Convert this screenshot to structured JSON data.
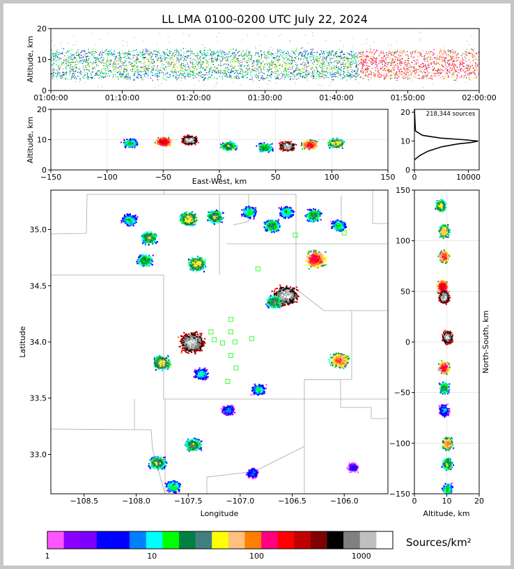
{
  "chart_data": [
    {
      "type": "scatter",
      "panel": "time-altitude",
      "title": "LL LMA 0100-0200 UTC July 22, 2024",
      "xlabel": "",
      "ylabel": "Altitude, km",
      "xticks": [
        "01:00:00",
        "01:10:00",
        "01:20:00",
        "01:30:00",
        "01:40:00",
        "01:50:00",
        "02:00:00"
      ],
      "xlim": [
        0,
        60
      ],
      "ylim": [
        0,
        20
      ],
      "yticks": [
        "0",
        "10",
        "20"
      ],
      "source_band_km": [
        4,
        13
      ]
    },
    {
      "type": "scatter",
      "panel": "east-west-altitude",
      "xlabel": "East-West, km",
      "ylabel": "Altitude, km",
      "xlim": [
        -150,
        150
      ],
      "ylim": [
        0,
        20
      ],
      "xticks": [
        "−150",
        "−100",
        "−50",
        "0",
        "50",
        "100",
        "150"
      ],
      "yticks": [
        "0",
        "10",
        "20"
      ],
      "clusters": [
        {
          "x": -80,
          "alt": 9,
          "peak": 20
        },
        {
          "x": -50,
          "alt": 9.5,
          "peak": 300
        },
        {
          "x": -27,
          "alt": 10,
          "peak": 1500
        },
        {
          "x": 8,
          "alt": 8,
          "peak": 40
        },
        {
          "x": 40,
          "alt": 7.5,
          "peak": 30
        },
        {
          "x": 60,
          "alt": 8,
          "peak": 1500
        },
        {
          "x": 80,
          "alt": 8.5,
          "peak": 200
        },
        {
          "x": 103,
          "alt": 9,
          "peak": 60
        }
      ]
    },
    {
      "type": "line",
      "panel": "altitude-histogram",
      "annotation": "218,344 sources",
      "xlim": [
        0,
        12000
      ],
      "ylim": [
        0,
        21
      ],
      "xticks": [
        "0",
        "10000"
      ],
      "yticks": [
        "0",
        "10",
        "20"
      ],
      "x": [
        0,
        1000,
        2500,
        5000,
        8000,
        10500,
        11800,
        9000,
        5000,
        1500,
        200,
        0
      ],
      "y": [
        3.5,
        5,
        6.5,
        8,
        9,
        9.5,
        10,
        10.5,
        11,
        12,
        13.5,
        21
      ]
    },
    {
      "type": "scatter",
      "panel": "plan-view",
      "xlabel": "Longitude",
      "ylabel": "Latitude",
      "xlim": [
        -108.82,
        -105.58
      ],
      "ylim": [
        32.65,
        35.35
      ],
      "xticks": [
        "−108.5",
        "−108.0",
        "−107.5",
        "−107.0",
        "−106.5",
        "−106.0"
      ],
      "yticks": [
        "33.0",
        "33.5",
        "34.0",
        "34.5",
        "35.0"
      ],
      "stations": [
        [
          -107.28,
          34.09
        ],
        [
          -107.25,
          34.02
        ],
        [
          -107.17,
          33.99
        ],
        [
          -107.09,
          34.2
        ],
        [
          -107.09,
          34.09
        ],
        [
          -107.05,
          34.0
        ],
        [
          -107.09,
          33.88
        ],
        [
          -107.04,
          33.77
        ],
        [
          -107.12,
          33.65
        ],
        [
          -106.89,
          34.03
        ],
        [
          -106.83,
          34.65
        ],
        [
          -106.47,
          34.95
        ],
        [
          -106.0,
          34.97
        ]
      ],
      "clusters": [
        {
          "lon": -108.07,
          "lat": 35.09,
          "peak": 20
        },
        {
          "lon": -107.88,
          "lat": 34.93,
          "peak": 40
        },
        {
          "lon": -107.92,
          "lat": 34.73,
          "peak": 30
        },
        {
          "lon": -107.5,
          "lat": 35.1,
          "peak": 60
        },
        {
          "lon": -107.25,
          "lat": 35.12,
          "peak": 40
        },
        {
          "lon": -107.42,
          "lat": 34.7,
          "peak": 60
        },
        {
          "lon": -106.92,
          "lat": 35.16,
          "peak": 20
        },
        {
          "lon": -106.7,
          "lat": 35.04,
          "peak": 30
        },
        {
          "lon": -106.56,
          "lat": 35.16,
          "peak": 20
        },
        {
          "lon": -106.3,
          "lat": 35.13,
          "peak": 30
        },
        {
          "lon": -106.06,
          "lat": 35.04,
          "peak": 20
        },
        {
          "lon": -106.28,
          "lat": 34.74,
          "peak": 200
        },
        {
          "lon": -106.57,
          "lat": 34.42,
          "peak": 1500
        },
        {
          "lon": -106.68,
          "lat": 34.36,
          "peak": 40
        },
        {
          "lon": -107.47,
          "lat": 34.0,
          "peak": 1500
        },
        {
          "lon": -107.76,
          "lat": 33.82,
          "peak": 60
        },
        {
          "lon": -107.38,
          "lat": 33.72,
          "peak": 15
        },
        {
          "lon": -106.05,
          "lat": 33.84,
          "peak": 120
        },
        {
          "lon": -106.83,
          "lat": 33.58,
          "peak": 15
        },
        {
          "lon": -107.12,
          "lat": 33.4,
          "peak": 10
        },
        {
          "lon": -107.46,
          "lat": 33.09,
          "peak": 40
        },
        {
          "lon": -107.8,
          "lat": 32.93,
          "peak": 40
        },
        {
          "lon": -107.65,
          "lat": 32.72,
          "peak": 20
        },
        {
          "lon": -106.89,
          "lat": 32.84,
          "peak": 8
        },
        {
          "lon": -105.92,
          "lat": 32.89,
          "peak": 5
        }
      ]
    },
    {
      "type": "scatter",
      "panel": "altitude-north-south",
      "xlabel": "Altitude, km",
      "ylabel": "North-South, km",
      "xlim": [
        0,
        20
      ],
      "ylim": [
        -150,
        150
      ],
      "xticks": [
        "0",
        "10",
        "20"
      ],
      "yticks": [
        "−150",
        "−100",
        "−50",
        "0",
        "50",
        "100",
        "150"
      ],
      "clusters": [
        {
          "ns": 135,
          "alt": 8,
          "peak": 50
        },
        {
          "ns": 110,
          "alt": 9,
          "peak": 80
        },
        {
          "ns": 85,
          "alt": 9,
          "peak": 150
        },
        {
          "ns": 55,
          "alt": 8.5,
          "peak": 300
        },
        {
          "ns": 45,
          "alt": 9,
          "peak": 1500
        },
        {
          "ns": 5,
          "alt": 10,
          "peak": 1500
        },
        {
          "ns": -25,
          "alt": 9,
          "peak": 200
        },
        {
          "ns": -45,
          "alt": 9,
          "peak": 30
        },
        {
          "ns": -67,
          "alt": 9,
          "peak": 10
        },
        {
          "ns": -100,
          "alt": 10,
          "peak": 100
        },
        {
          "ns": -120,
          "alt": 10,
          "peak": 40
        },
        {
          "ns": -145,
          "alt": 10,
          "peak": 20
        }
      ]
    },
    {
      "type": "heatmap",
      "panel": "colorbar",
      "label": "Sources/km²",
      "scale": "log",
      "range": [
        1,
        2000
      ],
      "ticks": [
        "1",
        "10",
        "100",
        "1000"
      ],
      "tick_values": [
        1,
        10,
        100,
        1000
      ],
      "colors": [
        "#ff55ff",
        "#8a00ff",
        "#7c00ff",
        "#0000ff",
        "#0000ff",
        "#0080ff",
        "#00ffff",
        "#00ff00",
        "#008040",
        "#408080",
        "#ffff00",
        "#ffc080",
        "#ff8000",
        "#ff0080",
        "#ff0000",
        "#c00000",
        "#800000",
        "#000000",
        "#808080",
        "#c0c0c0",
        "#ffffff"
      ]
    }
  ]
}
